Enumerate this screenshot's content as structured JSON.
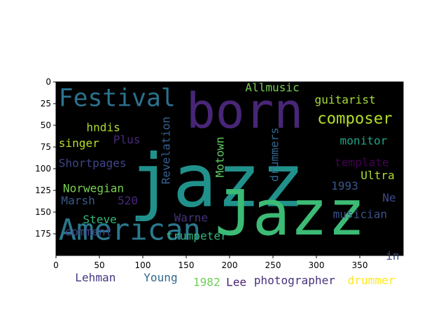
{
  "chart_data": {
    "type": "wordcloud",
    "title": "",
    "xlabel": "",
    "ylabel": "",
    "image_extent": {
      "width": 400,
      "height": 200
    },
    "xlim": [
      0,
      400
    ],
    "ylim": [
      200,
      0
    ],
    "x_ticks": [
      0,
      50,
      100,
      150,
      200,
      250,
      300,
      350
    ],
    "y_ticks": [
      0,
      25,
      50,
      75,
      100,
      125,
      150,
      175
    ],
    "background": "#000000",
    "words": [
      {
        "text": "jazz",
        "x": 84,
        "y": 143,
        "size": 84,
        "color": "#21918c",
        "vertical": false
      },
      {
        "text": "Jazz",
        "x": 183,
        "y": 176,
        "size": 72,
        "color": "#3cbb75",
        "vertical": false
      },
      {
        "text": "born",
        "x": 150,
        "y": 53,
        "size": 56,
        "color": "#482677",
        "vertical": false
      },
      {
        "text": "American",
        "x": 3,
        "y": 182,
        "size": 34,
        "color": "#2a788e",
        "vertical": false
      },
      {
        "text": "Festival",
        "x": 3,
        "y": 28,
        "size": 28,
        "color": "#2c728e",
        "vertical": false
      },
      {
        "text": "composer",
        "x": 301,
        "y": 48,
        "size": 18,
        "color": "#b5de2b",
        "vertical": false
      },
      {
        "text": "guitarist",
        "x": 298,
        "y": 25,
        "size": 13,
        "color": "#a5db36",
        "vertical": false
      },
      {
        "text": "Allmusic",
        "x": 218,
        "y": 11,
        "size": 13,
        "color": "#7ad151",
        "vertical": false
      },
      {
        "text": "hndis",
        "x": 35,
        "y": 57,
        "size": 13,
        "color": "#addc30",
        "vertical": false
      },
      {
        "text": "Plus",
        "x": 66,
        "y": 71,
        "size": 13,
        "color": "#482878",
        "vertical": false
      },
      {
        "text": "singer",
        "x": 3,
        "y": 75,
        "size": 13,
        "color": "#b8de29",
        "vertical": false
      },
      {
        "text": "monitor",
        "x": 327,
        "y": 72,
        "size": 13,
        "color": "#20a486",
        "vertical": false
      },
      {
        "text": "Shortpages",
        "x": 3,
        "y": 98,
        "size": 13,
        "color": "#404688",
        "vertical": false
      },
      {
        "text": "template",
        "x": 321,
        "y": 97,
        "size": 13,
        "color": "#440154",
        "vertical": false
      },
      {
        "text": "Ultra",
        "x": 351,
        "y": 112,
        "size": 13,
        "color": "#addc30",
        "vertical": false
      },
      {
        "text": "1993",
        "x": 317,
        "y": 124,
        "size": 13,
        "color": "#39568c",
        "vertical": false
      },
      {
        "text": "Norwegian",
        "x": 8,
        "y": 127,
        "size": 13,
        "color": "#7ad151",
        "vertical": false
      },
      {
        "text": "Marsh",
        "x": 6,
        "y": 141,
        "size": 13,
        "color": "#38598c",
        "vertical": false
      },
      {
        "text": "520",
        "x": 71,
        "y": 141,
        "size": 13,
        "color": "#482878",
        "vertical": false
      },
      {
        "text": "Ne",
        "x": 376,
        "y": 138,
        "size": 13,
        "color": "#3e4a89",
        "vertical": false
      },
      {
        "text": "Steve",
        "x": 31,
        "y": 163,
        "size": 13,
        "color": "#35b779",
        "vertical": false
      },
      {
        "text": "Warne",
        "x": 136,
        "y": 161,
        "size": 13,
        "color": "#46327e",
        "vertical": false
      },
      {
        "text": "musician",
        "x": 319,
        "y": 157,
        "size": 13,
        "color": "#3b528b",
        "vertical": false
      },
      {
        "text": "comment",
        "x": 10,
        "y": 177,
        "size": 13,
        "color": "#414487",
        "vertical": false
      },
      {
        "text": "trumpeter",
        "x": 127,
        "y": 182,
        "size": 13,
        "color": "#2fb47c",
        "vertical": false
      },
      {
        "text": "in",
        "x": 380,
        "y": 205,
        "size": 13,
        "color": "#3b528b",
        "vertical": false
      },
      {
        "text": "Lehman",
        "x": 22,
        "y": 230,
        "size": 13,
        "color": "#443983",
        "vertical": false
      },
      {
        "text": "Young",
        "x": 101,
        "y": 230,
        "size": 13,
        "color": "#31688e",
        "vertical": false
      },
      {
        "text": "1982",
        "x": 158,
        "y": 235,
        "size": 13,
        "color": "#6ece58",
        "vertical": false
      },
      {
        "text": "Lee",
        "x": 196,
        "y": 235,
        "size": 13,
        "color": "#481f70",
        "vertical": false
      },
      {
        "text": "photographer",
        "x": 228,
        "y": 233,
        "size": 13,
        "color": "#46327e",
        "vertical": false
      },
      {
        "text": "drummer",
        "x": 336,
        "y": 233,
        "size": 13,
        "color": "#fde725",
        "vertical": false
      },
      {
        "text": "Revelation",
        "x": 131,
        "y": 118,
        "size": 13,
        "color": "#355f8d",
        "vertical": true
      },
      {
        "text": "Motown",
        "x": 193,
        "y": 110,
        "size": 13,
        "color": "#5ec962",
        "vertical": true
      },
      {
        "text": "drummers",
        "x": 256,
        "y": 115,
        "size": 13,
        "color": "#31688e",
        "vertical": true
      }
    ]
  }
}
